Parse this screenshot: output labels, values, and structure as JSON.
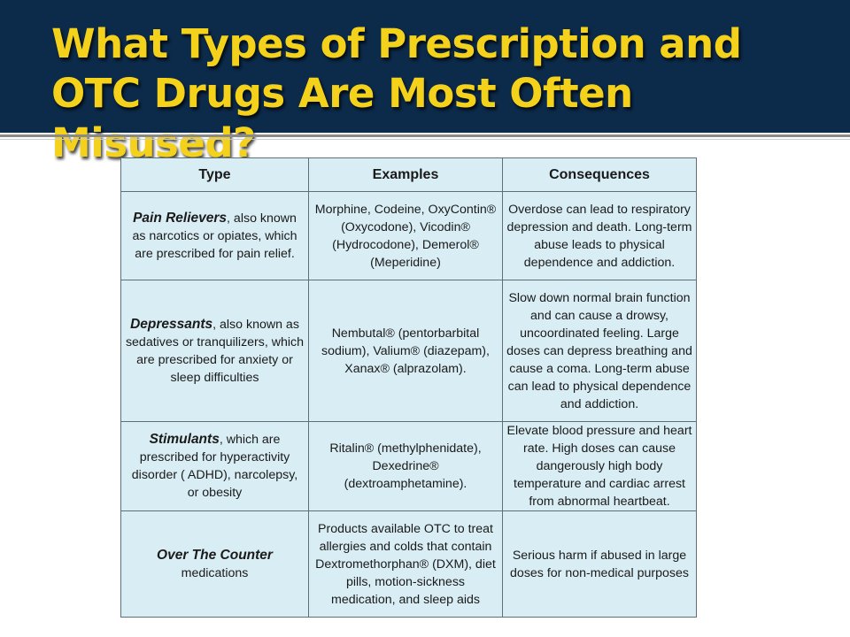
{
  "slide": {
    "title": "What Types of Prescription and OTC Drugs Are Most Often Misused?"
  },
  "table": {
    "headers": [
      "Type",
      "Examples",
      "Consequences"
    ],
    "rows": [
      {
        "type_name": "Pain Relievers",
        "type_desc": ", also known as narcotics or opiates, which are prescribed for pain relief.",
        "examples": "Morphine, Codeine, OxyContin® (Oxycodone), Vicodin® (Hydrocodone), Demerol® (Meperidine)",
        "consequences": "Overdose can lead to respiratory depression and death. Long-term abuse leads to physical dependence and addiction."
      },
      {
        "type_name": "Depressants",
        "type_desc": ", also known as sedatives or tranquilizers, which are prescribed for anxiety or sleep difficulties",
        "examples": "Nembutal® (pentorbarbital sodium), Valium® (diazepam), Xanax® (alprazolam).",
        "consequences": "Slow down normal brain function and can cause a drowsy, uncoordinated feeling. Large doses can depress breathing and cause a coma. Long-term abuse can lead to physical dependence and addiction."
      },
      {
        "type_name": "Stimulants",
        "type_desc": ", which are prescribed for hyperactivity disorder ( ADHD), narcolepsy, or obesity",
        "examples": "Ritalin® (methylphenidate), Dexedrine® (dextroamphetamine).",
        "consequences": "Elevate blood pressure and heart rate. High doses can cause dangerously high body temperature and cardiac arrest from abnormal heartbeat."
      },
      {
        "type_name": "Over The Counter",
        "type_desc": "medications",
        "examples": "Products available OTC to treat allergies and colds that contain Dextromethorphan® (DXM), diet pills, motion-sickness medication, and sleep aids",
        "consequences": "Serious harm if abused in large doses for non-medical purposes"
      }
    ]
  }
}
